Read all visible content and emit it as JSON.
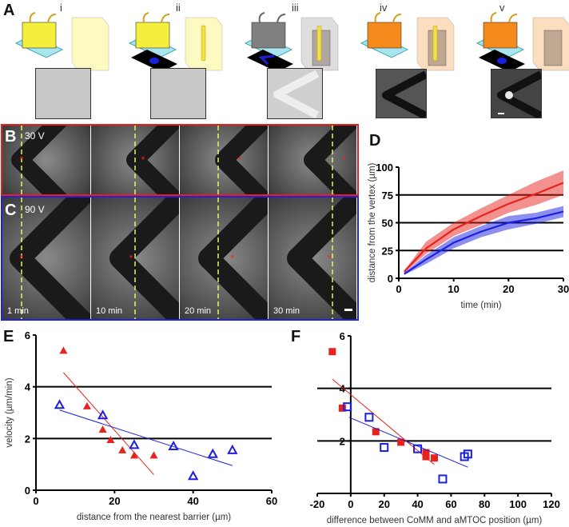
{
  "panels": {
    "A": "A",
    "B": "B",
    "C": "C",
    "D": "D",
    "E": "E",
    "F": "F"
  },
  "panelA": {
    "steps": [
      "i",
      "ii",
      "iii",
      "iv",
      "v"
    ]
  },
  "panelB": {
    "voltage": "30 V"
  },
  "panelC": {
    "voltage": "90 V",
    "times": [
      "1 min",
      "10 min",
      "20 min",
      "30 min"
    ]
  },
  "colors": {
    "red": "#e8231d",
    "blue": "#1b1fe0",
    "border_red": "#e62020",
    "border_blue": "#2222dd"
  },
  "chart_data": [
    {
      "id": "D",
      "type": "line",
      "xlabel": "time (min)",
      "ylabel": "distance from the vertex (µm)",
      "xlim": [
        0,
        30
      ],
      "ylim": [
        0,
        100
      ],
      "xticks": [
        0,
        10,
        20,
        30
      ],
      "yticks": [
        0,
        25,
        50,
        75,
        100
      ],
      "gridlines": [
        25,
        50,
        75
      ],
      "series": [
        {
          "name": "30 V",
          "color": "#e8231d",
          "x": [
            1,
            5,
            10,
            15,
            20,
            25,
            30
          ],
          "y": [
            6,
            27,
            44,
            56,
            67,
            76,
            86
          ],
          "lower": [
            5,
            22,
            38,
            48,
            59,
            66,
            75
          ],
          "upper": [
            7,
            33,
            50,
            63,
            75,
            87,
            97
          ]
        },
        {
          "name": "90 V",
          "color": "#1b1fe0",
          "x": [
            1,
            5,
            10,
            15,
            20,
            25,
            30
          ],
          "y": [
            4,
            17,
            32,
            42,
            50,
            54,
            60
          ],
          "lower": [
            3,
            13,
            27,
            37,
            44,
            49,
            55
          ],
          "upper": [
            5,
            21,
            37,
            47,
            56,
            59,
            65
          ]
        }
      ]
    },
    {
      "id": "E",
      "type": "scatter",
      "xlabel": "distance from the nearest barrier (µm)",
      "ylabel": "velocity (µm/min)",
      "xlim": [
        0,
        60
      ],
      "ylim": [
        0,
        6
      ],
      "xticks": [
        0,
        20,
        40,
        60
      ],
      "yticks": [
        0,
        2,
        4,
        6
      ],
      "gridlines": [
        2,
        4
      ],
      "series": [
        {
          "name": "30 V",
          "marker": "filled-triangle",
          "color": "#e8231d",
          "x": [
            7,
            13,
            17,
            19,
            22,
            25,
            30
          ],
          "y": [
            5.4,
            3.25,
            2.35,
            1.95,
            1.55,
            1.35,
            1.35
          ],
          "fit": [
            [
              7,
              4.55
            ],
            [
              30,
              0.6
            ]
          ]
        },
        {
          "name": "90 V",
          "marker": "open-triangle",
          "color": "#1b1fe0",
          "x": [
            6,
            17,
            25,
            35,
            40,
            45,
            50
          ],
          "y": [
            3.3,
            2.9,
            1.75,
            1.7,
            0.55,
            1.4,
            1.55
          ],
          "fit": [
            [
              6,
              3.1
            ],
            [
              50,
              0.95
            ]
          ]
        }
      ]
    },
    {
      "id": "F",
      "type": "scatter",
      "xlabel": "difference between CoMM and aMTOC position (µm)",
      "ylabel": "",
      "xlim": [
        -20,
        120
      ],
      "ylim": [
        0,
        6
      ],
      "xticks": [
        -20,
        0,
        20,
        40,
        60,
        80,
        100,
        120
      ],
      "yticks": [
        2,
        4,
        6
      ],
      "gridlines": [
        2,
        4
      ],
      "series": [
        {
          "name": "30 V",
          "marker": "filled-square",
          "color": "#e8231d",
          "x": [
            -11,
            -5,
            15,
            30,
            45,
            45,
            50
          ],
          "y": [
            5.4,
            3.25,
            2.35,
            1.95,
            1.55,
            1.4,
            1.35
          ],
          "fit": [
            [
              -11,
              4.35
            ],
            [
              50,
              1.1
            ]
          ]
        },
        {
          "name": "90 V",
          "marker": "open-square",
          "color": "#1b1fe0",
          "x": [
            -2,
            11,
            20,
            40,
            55,
            68,
            70
          ],
          "y": [
            3.3,
            2.9,
            1.75,
            1.7,
            0.55,
            1.4,
            1.5
          ],
          "fit": [
            [
              -1,
              2.9
            ],
            [
              70,
              1.0
            ]
          ]
        }
      ]
    }
  ]
}
